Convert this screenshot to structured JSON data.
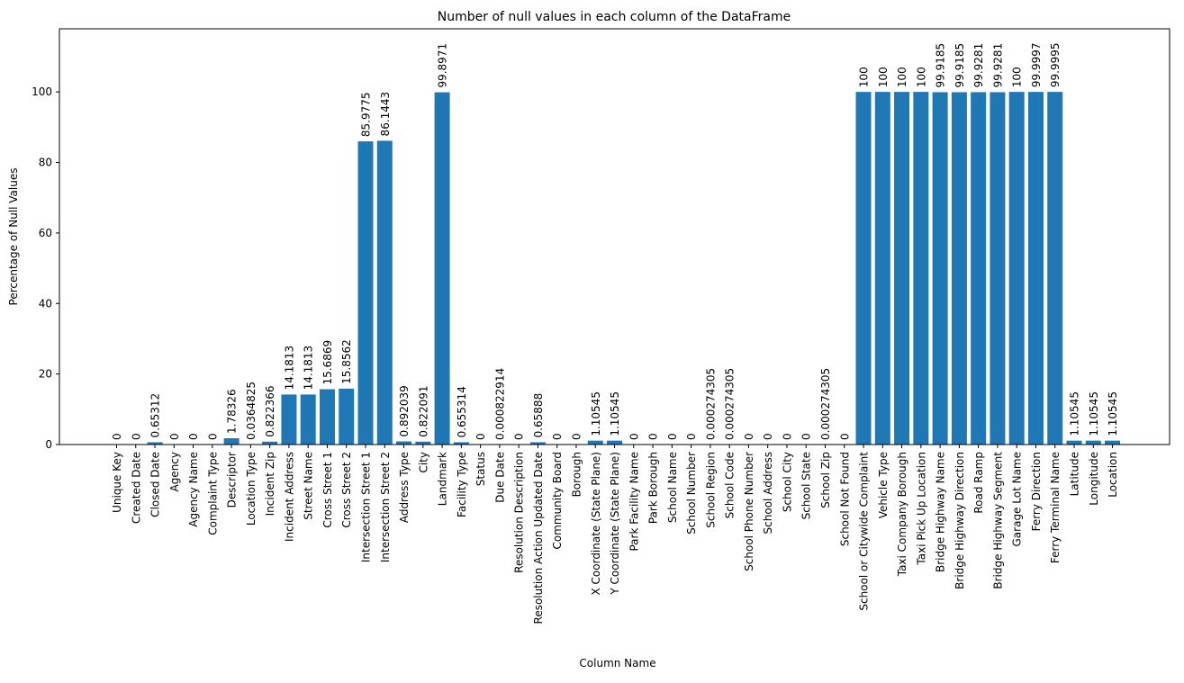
{
  "chart_data": {
    "type": "bar",
    "title": "Number of null values in each column of the DataFrame",
    "xlabel": "Column Name",
    "ylabel": "Percentage of Null Values",
    "ylim": [
      0,
      117.9
    ],
    "yticks": [
      0,
      20,
      40,
      60,
      80,
      100
    ],
    "grid": false,
    "legend": "none",
    "bar_color": "#1f77b4",
    "categories": [
      "Unique Key",
      "Created Date",
      "Closed Date",
      "Agency",
      "Agency Name",
      "Complaint Type",
      "Descriptor",
      "Location Type",
      "Incident Zip",
      "Incident Address",
      "Street Name",
      "Cross Street 1",
      "Cross Street 2",
      "Intersection Street 1",
      "Intersection Street 2",
      "Address Type",
      "City",
      "Landmark",
      "Facility Type",
      "Status",
      "Due Date",
      "Resolution Description",
      "Resolution Action Updated Date",
      "Community Board",
      "Borough",
      "X Coordinate (State Plane)",
      "Y Coordinate (State Plane)",
      "Park Facility Name",
      "Park Borough",
      "School Name",
      "School Number",
      "School Region",
      "School Code",
      "School Phone Number",
      "School Address",
      "School City",
      "School State",
      "School Zip",
      "School Not Found",
      "School or Citywide Complaint",
      "Vehicle Type",
      "Taxi Company Borough",
      "Taxi Pick Up Location",
      "Bridge Highway Name",
      "Bridge Highway Direction",
      "Road Ramp",
      "Bridge Highway Segment",
      "Garage Lot Name",
      "Ferry Direction",
      "Ferry Terminal Name",
      "Latitude",
      "Longitude",
      "Location"
    ],
    "values": [
      0,
      0,
      0.65312,
      0,
      0,
      0,
      1.78326,
      0.0364825,
      0.822366,
      14.1813,
      14.1813,
      15.6869,
      15.8562,
      85.9775,
      86.1443,
      0.892039,
      0.822091,
      99.8971,
      0.655314,
      0,
      0.000822914,
      0,
      0.65888,
      0,
      0,
      1.10545,
      1.10545,
      0,
      0,
      0,
      0,
      0.000274305,
      0.000274305,
      0,
      0,
      0,
      0,
      0.000274305,
      0,
      100,
      100,
      100,
      100,
      99.9185,
      99.9185,
      99.9281,
      99.9281,
      100,
      99.9997,
      99.9995,
      1.10545,
      1.10545,
      1.10545
    ],
    "value_labels": [
      "0",
      "0",
      "0.65312",
      "0",
      "0",
      "0",
      "1.78326",
      "0.0364825",
      "0.822366",
      "14.1813",
      "14.1813",
      "15.6869",
      "15.8562",
      "85.9775",
      "86.1443",
      "0.892039",
      "0.822091",
      "99.8971",
      "0.655314",
      "0",
      "0.000822914",
      "0",
      "0.65888",
      "0",
      "0",
      "1.10545",
      "1.10545",
      "0",
      "0",
      "0",
      "0",
      "0.000274305",
      "0.000274305",
      "0",
      "0",
      "0",
      "0",
      "0.000274305",
      "0",
      "100",
      "100",
      "100",
      "100",
      "99.9185",
      "99.9185",
      "99.9281",
      "99.9281",
      "100",
      "99.9997",
      "99.9995",
      "1.10545",
      "1.10545",
      "1.10545"
    ]
  }
}
